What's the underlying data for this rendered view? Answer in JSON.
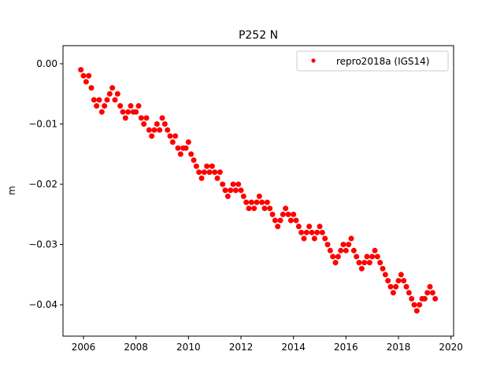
{
  "chart_data": {
    "type": "scatter",
    "title": "P252 N",
    "xlabel": "",
    "ylabel": "m",
    "xlim": [
      2005.22,
      2020.1
    ],
    "ylim": [
      -0.0452,
      0.003
    ],
    "xticks": [
      2006,
      2008,
      2010,
      2012,
      2014,
      2016,
      2018,
      2020
    ],
    "xtick_labels": [
      "2006",
      "2008",
      "2010",
      "2012",
      "2014",
      "2016",
      "2018",
      "2020"
    ],
    "yticks": [
      0.0,
      -0.01,
      -0.02,
      -0.03,
      -0.04
    ],
    "ytick_labels": [
      "0.00",
      "−0.01",
      "−0.02",
      "−0.03",
      "−0.04"
    ],
    "grid": false,
    "legend": {
      "position": "top-right",
      "entries": [
        "repro2018a (IGS14)"
      ]
    },
    "series": [
      {
        "name": "repro2018a (IGS14)",
        "color": "#ff0000",
        "x": [
          2005.9,
          2006.0,
          2006.1,
          2006.2,
          2006.3,
          2006.4,
          2006.5,
          2006.6,
          2006.7,
          2006.8,
          2006.9,
          2007.0,
          2007.1,
          2007.2,
          2007.3,
          2007.4,
          2007.5,
          2007.6,
          2007.7,
          2007.8,
          2007.9,
          2008.0,
          2008.1,
          2008.2,
          2008.3,
          2008.4,
          2008.5,
          2008.6,
          2008.7,
          2008.8,
          2008.9,
          2009.0,
          2009.1,
          2009.2,
          2009.3,
          2009.4,
          2009.5,
          2009.6,
          2009.7,
          2009.8,
          2009.9,
          2010.0,
          2010.1,
          2010.2,
          2010.3,
          2010.4,
          2010.5,
          2010.6,
          2010.7,
          2010.8,
          2010.9,
          2011.0,
          2011.1,
          2011.2,
          2011.3,
          2011.4,
          2011.5,
          2011.6,
          2011.7,
          2011.8,
          2011.9,
          2012.0,
          2012.1,
          2012.2,
          2012.3,
          2012.4,
          2012.5,
          2012.6,
          2012.7,
          2012.8,
          2012.9,
          2013.0,
          2013.1,
          2013.2,
          2013.3,
          2013.4,
          2013.5,
          2013.6,
          2013.7,
          2013.8,
          2013.9,
          2014.0,
          2014.1,
          2014.2,
          2014.3,
          2014.4,
          2014.5,
          2014.6,
          2014.7,
          2014.8,
          2014.9,
          2015.0,
          2015.1,
          2015.2,
          2015.3,
          2015.4,
          2015.5,
          2015.6,
          2015.7,
          2015.8,
          2015.9,
          2016.0,
          2016.1,
          2016.2,
          2016.3,
          2016.4,
          2016.5,
          2016.6,
          2016.7,
          2016.8,
          2016.9,
          2017.0,
          2017.1,
          2017.2,
          2017.3,
          2017.4,
          2017.5,
          2017.6,
          2017.7,
          2017.8,
          2017.9,
          2018.0,
          2018.1,
          2018.2,
          2018.3,
          2018.4,
          2018.5,
          2018.6,
          2018.7,
          2018.8,
          2018.9,
          2019.0,
          2019.1,
          2019.2,
          2019.3,
          2019.4
        ],
        "y": [
          -0.001,
          -0.002,
          -0.003,
          -0.002,
          -0.004,
          -0.006,
          -0.007,
          -0.006,
          -0.008,
          -0.007,
          -0.006,
          -0.005,
          -0.004,
          -0.006,
          -0.005,
          -0.007,
          -0.008,
          -0.009,
          -0.008,
          -0.007,
          -0.008,
          -0.008,
          -0.007,
          -0.009,
          -0.01,
          -0.009,
          -0.011,
          -0.012,
          -0.011,
          -0.01,
          -0.011,
          -0.009,
          -0.01,
          -0.011,
          -0.012,
          -0.013,
          -0.012,
          -0.014,
          -0.015,
          -0.014,
          -0.014,
          -0.013,
          -0.015,
          -0.016,
          -0.017,
          -0.018,
          -0.019,
          -0.018,
          -0.017,
          -0.018,
          -0.017,
          -0.018,
          -0.019,
          -0.018,
          -0.02,
          -0.021,
          -0.022,
          -0.021,
          -0.02,
          -0.021,
          -0.02,
          -0.021,
          -0.022,
          -0.023,
          -0.024,
          -0.023,
          -0.024,
          -0.023,
          -0.022,
          -0.023,
          -0.024,
          -0.023,
          -0.024,
          -0.025,
          -0.026,
          -0.027,
          -0.026,
          -0.025,
          -0.024,
          -0.025,
          -0.026,
          -0.025,
          -0.026,
          -0.027,
          -0.028,
          -0.029,
          -0.028,
          -0.027,
          -0.028,
          -0.029,
          -0.028,
          -0.027,
          -0.028,
          -0.029,
          -0.03,
          -0.031,
          -0.032,
          -0.033,
          -0.032,
          -0.031,
          -0.03,
          -0.031,
          -0.03,
          -0.029,
          -0.031,
          -0.032,
          -0.033,
          -0.034,
          -0.033,
          -0.032,
          -0.033,
          -0.032,
          -0.031,
          -0.032,
          -0.033,
          -0.034,
          -0.035,
          -0.036,
          -0.037,
          -0.038,
          -0.037,
          -0.036,
          -0.035,
          -0.036,
          -0.037,
          -0.038,
          -0.039,
          -0.04,
          -0.041,
          -0.04,
          -0.039,
          -0.039,
          -0.038,
          -0.037,
          -0.038,
          -0.039
        ]
      }
    ]
  }
}
